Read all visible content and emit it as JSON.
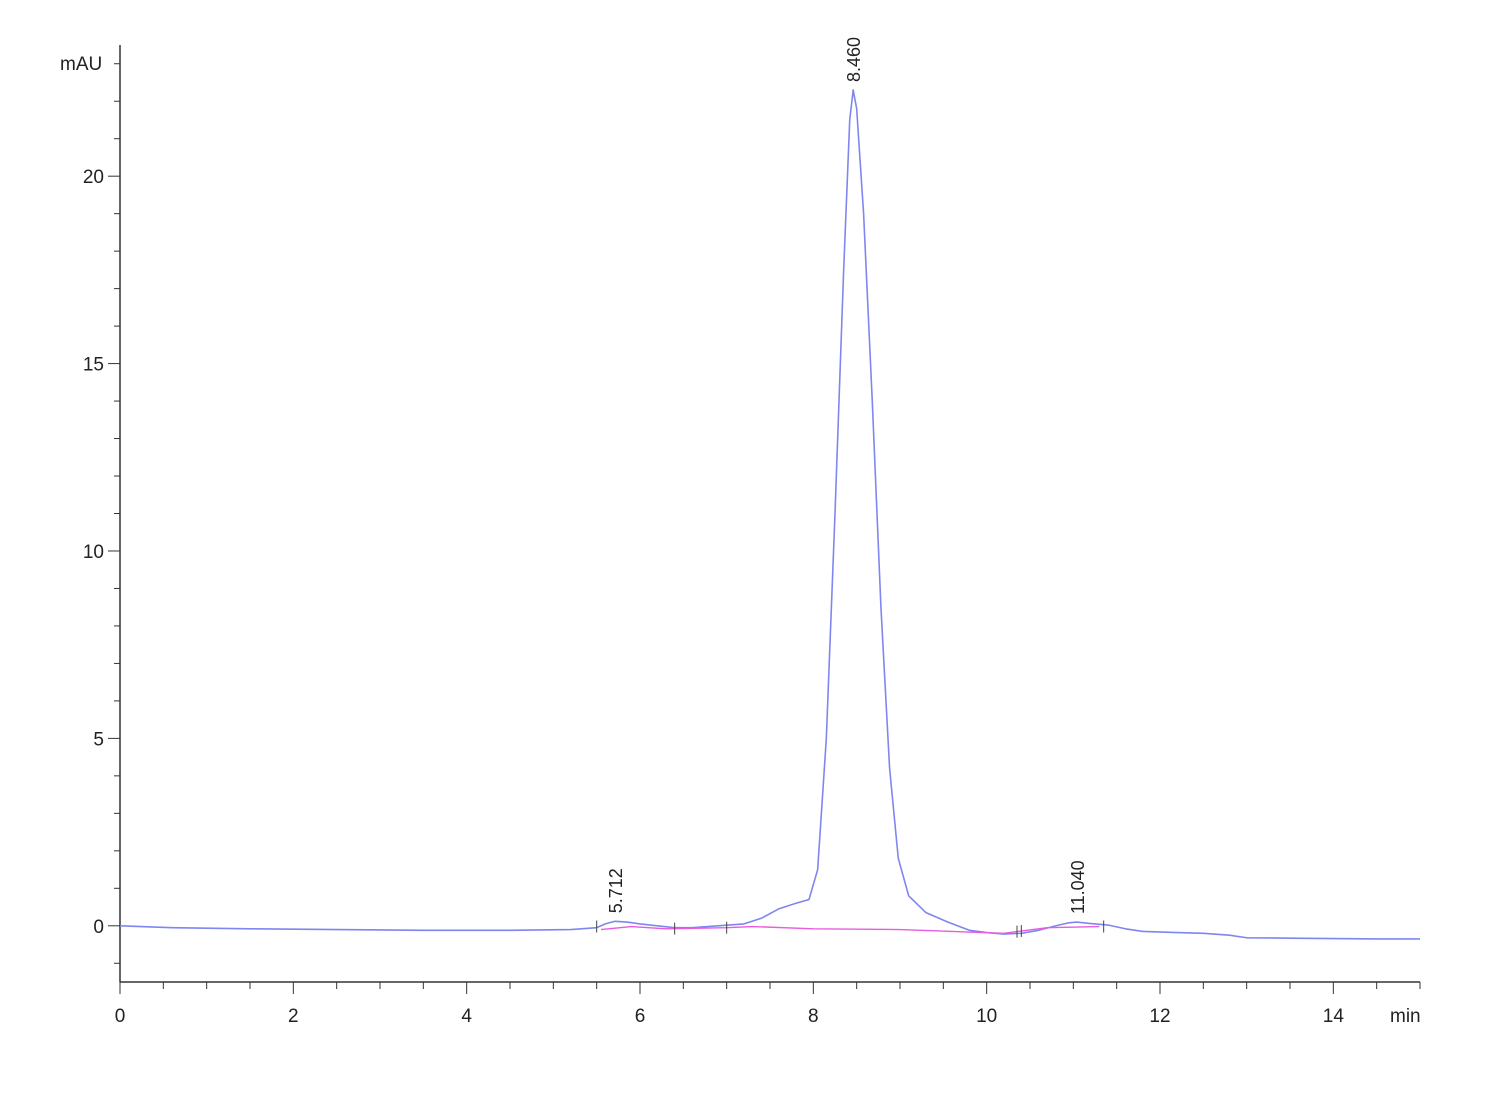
{
  "chart_data": {
    "type": "line",
    "title": "",
    "xlabel": "min",
    "ylabel": "mAU",
    "xlim": [
      0,
      15
    ],
    "ylim": [
      -1.5,
      23.5
    ],
    "grid": false,
    "legend": "none",
    "x_ticks": [
      0,
      2,
      4,
      6,
      8,
      10,
      12,
      14
    ],
    "y_ticks": [
      0,
      5,
      10,
      15,
      20
    ],
    "x_minor_step": 0.5,
    "y_minor_step": 1,
    "series": [
      {
        "color": "#7f86f0",
        "points": [
          [
            0.0,
            0.0
          ],
          [
            0.6,
            -0.05
          ],
          [
            1.5,
            -0.08
          ],
          [
            2.5,
            -0.1
          ],
          [
            3.5,
            -0.12
          ],
          [
            4.5,
            -0.12
          ],
          [
            5.2,
            -0.1
          ],
          [
            5.5,
            -0.05
          ],
          [
            5.6,
            0.05
          ],
          [
            5.712,
            0.12
          ],
          [
            5.85,
            0.1
          ],
          [
            6.0,
            0.05
          ],
          [
            6.2,
            0.0
          ],
          [
            6.4,
            -0.05
          ],
          [
            6.6,
            -0.05
          ],
          [
            6.9,
            0.0
          ],
          [
            7.2,
            0.05
          ],
          [
            7.4,
            0.2
          ],
          [
            7.6,
            0.45
          ],
          [
            7.8,
            0.6
          ],
          [
            7.95,
            0.7
          ],
          [
            8.05,
            1.5
          ],
          [
            8.15,
            5.0
          ],
          [
            8.25,
            11.0
          ],
          [
            8.35,
            17.5
          ],
          [
            8.42,
            21.5
          ],
          [
            8.46,
            22.3
          ],
          [
            8.5,
            21.8
          ],
          [
            8.58,
            19.0
          ],
          [
            8.68,
            14.0
          ],
          [
            8.78,
            8.5
          ],
          [
            8.88,
            4.2
          ],
          [
            8.98,
            1.8
          ],
          [
            9.1,
            0.8
          ],
          [
            9.3,
            0.35
          ],
          [
            9.55,
            0.1
          ],
          [
            9.8,
            -0.12
          ],
          [
            10.0,
            -0.18
          ],
          [
            10.2,
            -0.22
          ],
          [
            10.4,
            -0.2
          ],
          [
            10.6,
            -0.12
          ],
          [
            10.8,
            0.0
          ],
          [
            10.95,
            0.08
          ],
          [
            11.04,
            0.1
          ],
          [
            11.2,
            0.06
          ],
          [
            11.4,
            0.02
          ],
          [
            11.6,
            -0.08
          ],
          [
            11.8,
            -0.15
          ],
          [
            12.2,
            -0.18
          ],
          [
            12.5,
            -0.2
          ],
          [
            12.8,
            -0.25
          ],
          [
            13.0,
            -0.32
          ],
          [
            13.5,
            -0.33
          ],
          [
            14.0,
            -0.34
          ],
          [
            14.5,
            -0.35
          ],
          [
            15.0,
            -0.35
          ]
        ]
      },
      {
        "color": "#e85be0",
        "points": [
          [
            5.55,
            -0.1
          ],
          [
            5.9,
            -0.02
          ],
          [
            6.3,
            -0.08
          ],
          [
            7.0,
            -0.05
          ],
          [
            7.3,
            -0.02
          ],
          [
            8.0,
            -0.08
          ],
          [
            9.0,
            -0.1
          ],
          [
            10.2,
            -0.2
          ],
          [
            10.7,
            -0.05
          ],
          [
            11.3,
            -0.02
          ]
        ]
      }
    ],
    "peaks": [
      {
        "label": "5.712",
        "x": 5.712,
        "y": 0.12
      },
      {
        "label": "8.460",
        "x": 8.46,
        "y": 22.3
      },
      {
        "label": "11.040",
        "x": 11.04,
        "y": 0.1
      }
    ],
    "baseline_markers": [
      5.5,
      6.4,
      7.0,
      10.35,
      10.4,
      11.35
    ]
  }
}
